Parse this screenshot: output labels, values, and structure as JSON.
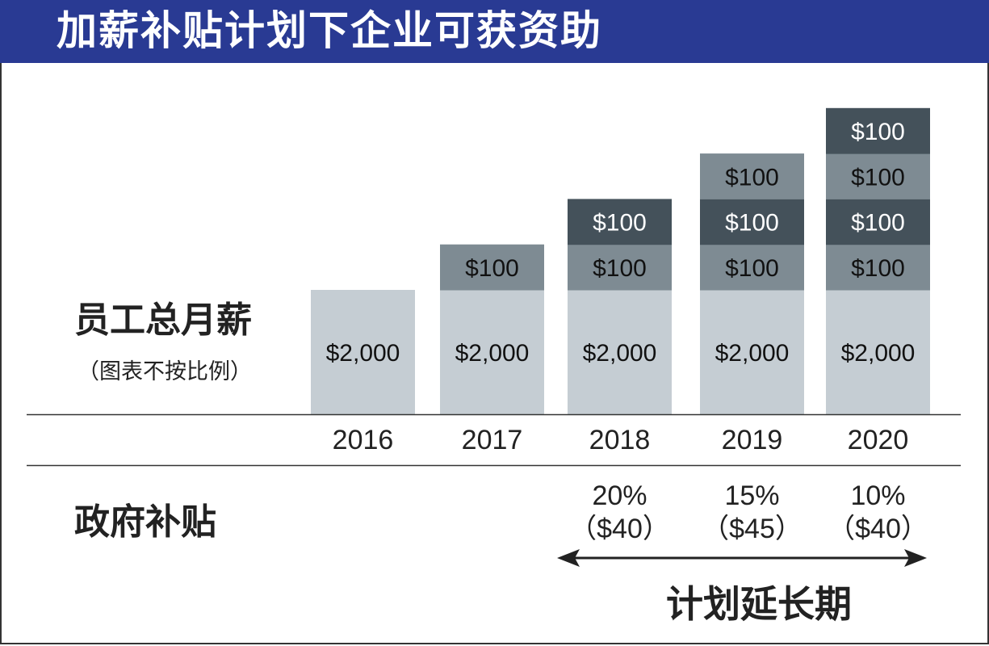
{
  "title": "加薪补贴计划下企业可获资助",
  "left_labels": {
    "salary": "员工总月薪",
    "note": "（图表不按比例）",
    "subsidy": "政府补贴"
  },
  "extension_label": "计划延长期",
  "colors": {
    "header": "#293a93",
    "base": "#c5cdd3",
    "mid": "#7e8b93",
    "dark": "#44515a"
  },
  "chart_data": {
    "type": "bar",
    "stacked": true,
    "title": "加薪补贴计划下企业可获资助",
    "ylabel": "员工总月薪（图表不按比例）",
    "categories": [
      "2016",
      "2017",
      "2018",
      "2019",
      "2020"
    ],
    "base": {
      "value": 2000,
      "label": "$2,000"
    },
    "increments": [
      0,
      1,
      2,
      3,
      4
    ],
    "increment_value": 100,
    "increment_label": "$100",
    "subsidy": [
      {
        "year": "2018",
        "rate": "20%",
        "amount": "（$40）"
      },
      {
        "year": "2019",
        "rate": "15%",
        "amount": "（$45）"
      },
      {
        "year": "2020",
        "rate": "10%",
        "amount": "（$40）"
      }
    ]
  }
}
